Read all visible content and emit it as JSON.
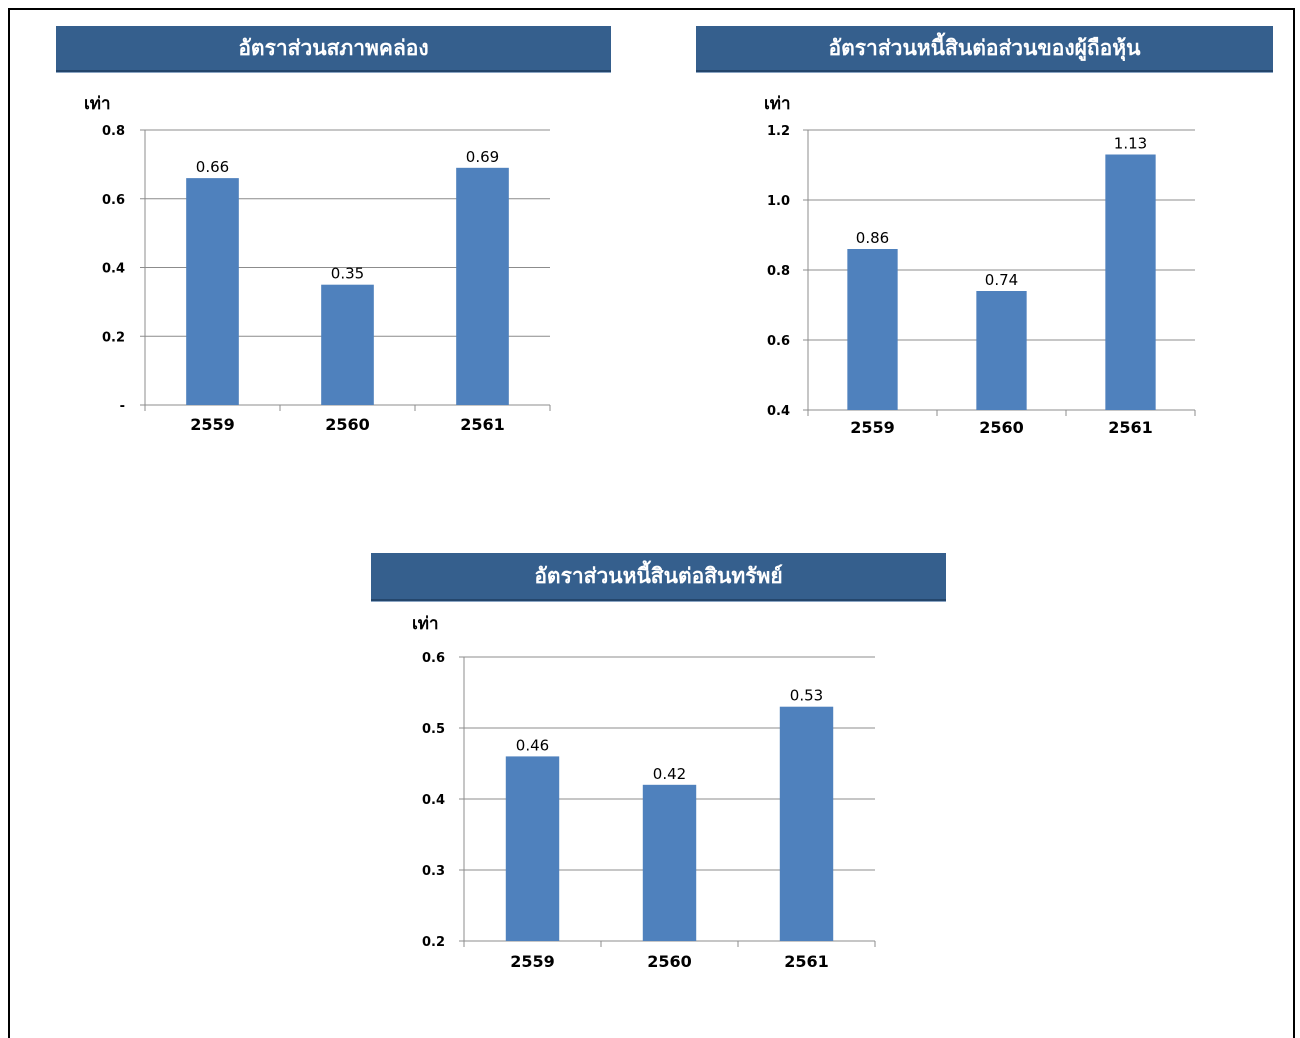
{
  "chart_data": [
    {
      "type": "bar",
      "title": "อัตราส่วนสภาพคล่อง",
      "ylabel": "เท่า",
      "categories": [
        "2559",
        "2560",
        "2561"
      ],
      "values": [
        0.66,
        0.35,
        0.69
      ],
      "value_labels": [
        "0.66",
        "0.35",
        "0.69"
      ],
      "yticks": [
        0,
        0.2,
        0.4,
        0.6,
        0.8
      ],
      "ytick_labels": [
        "-",
        "0.2",
        "0.4",
        "0.6",
        "0.8"
      ],
      "ylim": [
        0,
        0.8
      ],
      "grid": true,
      "bar_color": "#4f81bd"
    },
    {
      "type": "bar",
      "title": "อัตราส่วนหนี้สินต่อส่วนของผู้ถือหุ้น",
      "ylabel": "เท่า",
      "categories": [
        "2559",
        "2560",
        "2561"
      ],
      "values": [
        0.86,
        0.74,
        1.13
      ],
      "value_labels": [
        "0.86",
        "0.74",
        "1.13"
      ],
      "yticks": [
        0.4,
        0.6,
        0.8,
        1.0,
        1.2
      ],
      "ytick_labels": [
        "0.4",
        "0.6",
        "0.8",
        "1.0",
        "1.2"
      ],
      "ylim": [
        0.4,
        1.2
      ],
      "grid": true,
      "bar_color": "#4f81bd"
    },
    {
      "type": "bar",
      "title": "อัตราส่วนหนี้สินต่อสินทรัพย์",
      "ylabel": "เท่า",
      "categories": [
        "2559",
        "2560",
        "2561"
      ],
      "values": [
        0.46,
        0.42,
        0.53
      ],
      "value_labels": [
        "0.46",
        "0.42",
        "0.53"
      ],
      "yticks": [
        0.2,
        0.3,
        0.4,
        0.5,
        0.6
      ],
      "ytick_labels": [
        "0.2",
        "0.3",
        "0.4",
        "0.5",
        "0.6"
      ],
      "ylim": [
        0.2,
        0.6
      ],
      "grid": true,
      "bar_color": "#4f81bd"
    }
  ],
  "colors": {
    "banner": "#355f8d",
    "bar": "#4f81bd",
    "grid": "#8c8c8c"
  }
}
